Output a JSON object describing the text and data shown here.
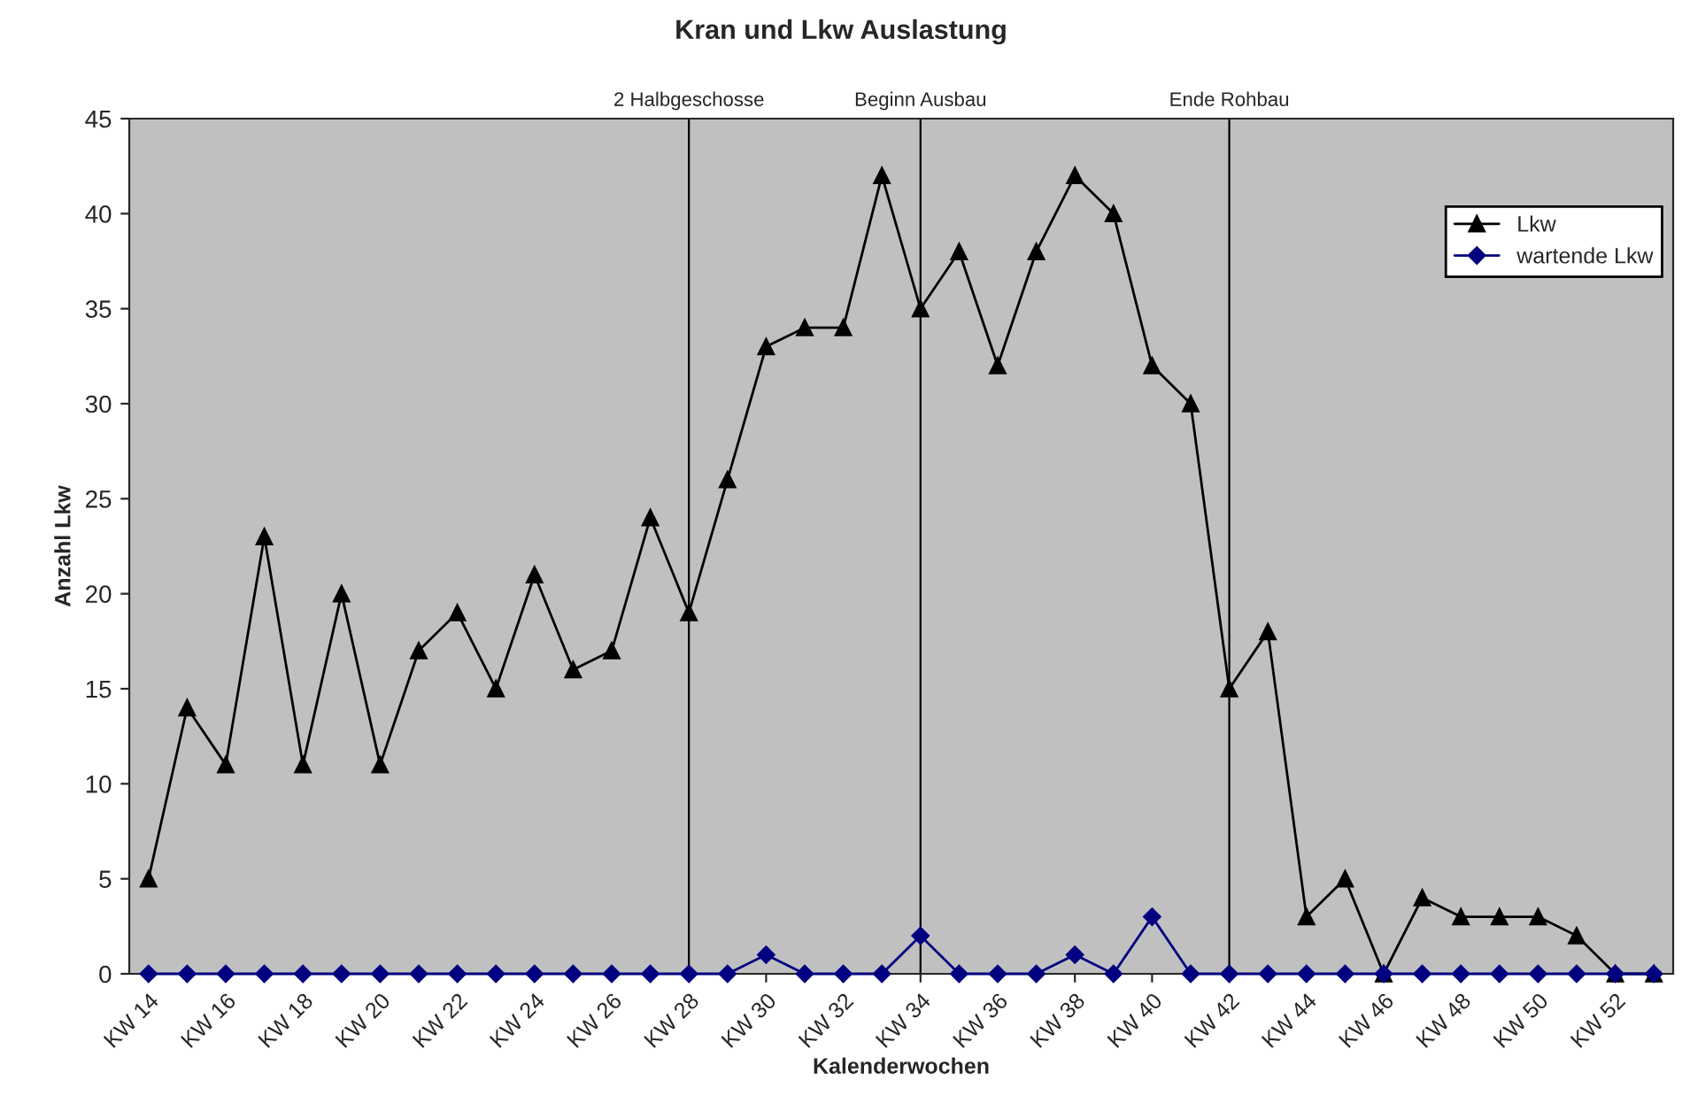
{
  "chart_data": {
    "type": "line",
    "title": "Kran und Lkw Auslastung",
    "xlabel": "Kalenderwochen",
    "ylabel": "Anzahl Lkw",
    "categories": [
      "KW 14",
      null,
      "KW 16",
      null,
      "KW 18",
      null,
      "KW 20",
      null,
      "KW 22",
      null,
      "KW 24",
      null,
      "KW 26",
      null,
      "KW 28",
      null,
      "KW 30",
      null,
      "KW 32",
      null,
      "KW 34",
      null,
      "KW 36",
      null,
      "KW 38",
      null,
      "KW 40",
      null,
      "KW 42",
      null,
      "KW 44",
      null,
      "KW 46",
      null,
      "KW 48",
      null,
      "KW 50",
      null,
      "KW 52",
      null
    ],
    "series": [
      {
        "name": "Lkw",
        "color": "#000000",
        "marker": "triangle",
        "values": [
          5,
          14,
          11,
          23,
          11,
          20,
          11,
          17,
          19,
          15,
          21,
          16,
          17,
          24,
          19,
          26,
          33,
          34,
          34,
          42,
          35,
          38,
          32,
          38,
          42,
          40,
          32,
          30,
          15,
          18,
          3,
          5,
          0,
          4,
          3,
          3,
          3,
          2,
          0,
          0
        ]
      },
      {
        "name": "wartende Lkw",
        "color": "#000080",
        "marker": "diamond",
        "values": [
          0,
          0,
          0,
          0,
          0,
          0,
          0,
          0,
          0,
          0,
          0,
          0,
          0,
          0,
          0,
          0,
          1,
          0,
          0,
          0,
          2,
          0,
          0,
          0,
          1,
          0,
          3,
          0,
          0,
          0,
          0,
          0,
          0,
          0,
          0,
          0,
          0,
          0,
          0,
          0
        ]
      }
    ],
    "ylim": [
      0,
      45
    ],
    "yticks": [
      0,
      5,
      10,
      15,
      20,
      25,
      30,
      35,
      40,
      45
    ],
    "grid": false,
    "legend": "top right",
    "ref_lines": [
      {
        "axis": "x",
        "value": "KW 28",
        "label": "2 Halbgeschosse",
        "color": "#000000"
      },
      {
        "axis": "x",
        "value": "KW 34",
        "label": "Beginn Ausbau",
        "color": "#000000"
      },
      {
        "axis": "x",
        "value": "KW 42",
        "label": "Ende Rohbau",
        "color": "#000000"
      }
    ]
  }
}
